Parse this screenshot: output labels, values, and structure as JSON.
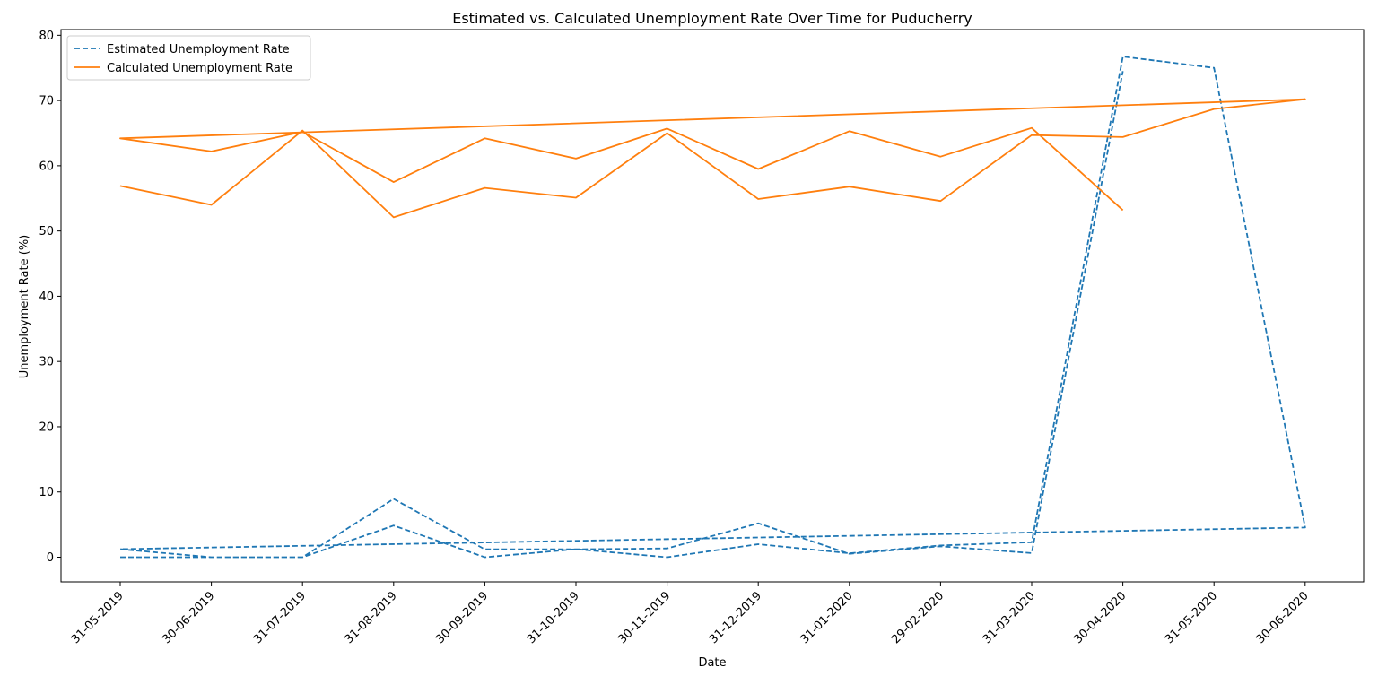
{
  "chart_data": {
    "type": "line",
    "title": "Estimated vs. Calculated Unemployment Rate Over Time for Puducherry",
    "xlabel": "Date",
    "ylabel": "Unemployment Rate (%)",
    "categories": [
      "31-05-2019",
      "30-06-2019",
      "31-07-2019",
      "31-08-2019",
      "30-09-2019",
      "31-10-2019",
      "30-11-2019",
      "31-12-2019",
      "31-01-2020",
      "29-02-2020",
      "31-03-2020",
      "30-04-2020",
      "31-05-2020",
      "30-06-2020"
    ],
    "y_ticks": [
      0,
      10,
      20,
      30,
      40,
      50,
      60,
      70,
      80
    ],
    "ylim": [
      -4,
      81
    ],
    "grid": false,
    "legend_position": "top-left",
    "series": [
      {
        "name": "Estimated Unemployment Rate",
        "color": "#1f77b4",
        "dash": "dashed",
        "x": [
          "31-05-2019",
          "30-06-2019",
          "31-07-2019",
          "31-08-2019",
          "30-09-2019",
          "31-10-2019",
          "30-11-2019",
          "31-12-2019",
          "31-01-2020",
          "29-02-2020",
          "31-03-2020",
          "30-04-2020",
          "31-05-2020",
          "30-06-2020",
          "31-05-2019",
          "30-06-2019",
          "31-07-2019",
          "31-08-2019",
          "30-09-2019",
          "31-10-2019",
          "30-11-2019",
          "31-12-2019",
          "31-01-2020",
          "29-02-2020",
          "31-03-2020",
          "30-04-2020"
        ],
        "y": [
          0.0,
          0.0,
          0.0,
          4.85,
          0.0,
          1.23,
          0.0,
          1.99,
          0.6,
          1.8,
          2.3,
          76.74,
          75.0,
          4.55,
          1.23,
          0.0,
          0.0,
          8.93,
          1.21,
          1.21,
          1.35,
          5.2,
          0.52,
          1.68,
          0.63,
          74.51
        ]
      },
      {
        "name": "Calculated Unemployment Rate",
        "color": "#ff7f0e",
        "dash": "solid",
        "x": [
          "31-05-2019",
          "30-06-2019",
          "31-07-2019",
          "31-08-2019",
          "30-09-2019",
          "31-10-2019",
          "30-11-2019",
          "31-12-2019",
          "31-01-2020",
          "29-02-2020",
          "31-03-2020",
          "30-04-2020",
          "31-05-2020",
          "30-06-2020",
          "31-05-2019",
          "30-06-2019",
          "31-07-2019",
          "31-08-2019",
          "30-09-2019",
          "31-10-2019",
          "30-11-2019",
          "31-12-2019",
          "31-01-2020",
          "29-02-2020",
          "31-03-2020",
          "30-04-2020"
        ],
        "y": [
          56.9,
          54.0,
          65.4,
          52.1,
          56.6,
          55.1,
          65.0,
          54.9,
          56.8,
          54.6,
          64.7,
          64.4,
          68.7,
          70.2,
          64.2,
          62.2,
          65.2,
          57.5,
          64.2,
          61.1,
          65.7,
          59.5,
          65.3,
          61.4,
          65.8,
          53.2
        ]
      }
    ]
  }
}
